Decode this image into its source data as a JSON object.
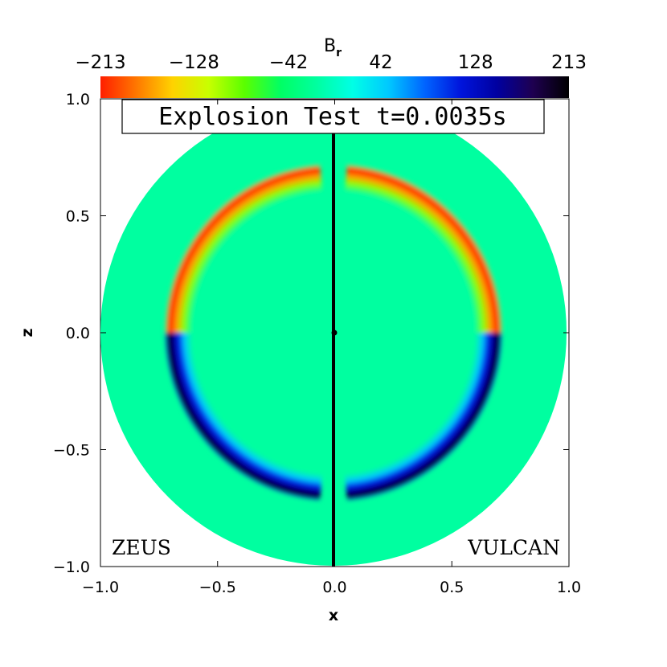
{
  "chart_data": {
    "type": "heatmap",
    "title": "Explosion Test t=0.0035s",
    "xlabel": "x",
    "ylabel": "z",
    "xlim": [
      -1.0,
      1.0
    ],
    "ylim": [
      -1.0,
      1.0
    ],
    "x_ticks": [
      "−1.0",
      "−0.5",
      "0.0",
      "0.5",
      "1.0"
    ],
    "y_ticks": [
      "−1.0",
      "−0.5",
      "0.0",
      "0.5",
      "1.0"
    ],
    "colorbar": {
      "label": "B",
      "label_sub": "r",
      "ticks": [
        "−213",
        "−128",
        "−42",
        "42",
        "128",
        "213"
      ],
      "range": [
        -213,
        213
      ],
      "colors": [
        "#ff1e00",
        "#ff7800",
        "#ffd200",
        "#c8ff00",
        "#5aff00",
        "#00ff64",
        "#00ffa0",
        "#00ffe6",
        "#00c8ff",
        "#0064ff",
        "#0014dc",
        "#0000a0",
        "#1e0050",
        "#000000"
      ]
    },
    "domain_radius": 1.0,
    "panels": [
      {
        "name": "ZEUS",
        "side": "left"
      },
      {
        "name": "VULCAN",
        "side": "right"
      }
    ],
    "background_value": 0,
    "features": [
      {
        "desc": "shell",
        "side": "both",
        "hemisphere": "upper",
        "sign": "negative",
        "radius": 0.65,
        "min_value": -190
      },
      {
        "desc": "shell",
        "side": "both",
        "hemisphere": "lower",
        "sign": "positive",
        "radius": 0.65,
        "max_value": 213
      }
    ]
  }
}
